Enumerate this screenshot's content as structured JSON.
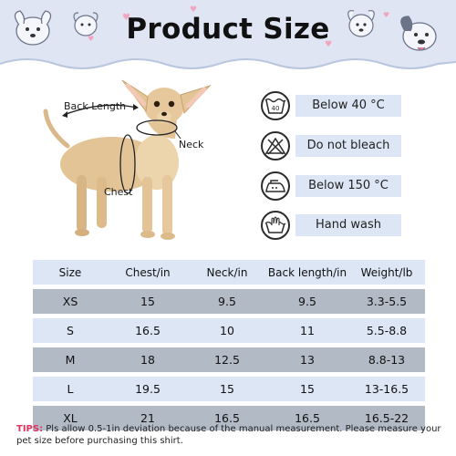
{
  "header": {
    "title": "Product Size",
    "background_color": "#dfe5f3"
  },
  "dog_labels": {
    "back_length": "Back Length",
    "neck": "Neck",
    "chest": "Chest"
  },
  "care": [
    {
      "icon": "wash-40-icon",
      "text": "Below 40 °C",
      "icon_text": "40"
    },
    {
      "icon": "no-bleach-icon",
      "text": "Do not bleach"
    },
    {
      "icon": "iron-icon",
      "text": "Below 150 °C"
    },
    {
      "icon": "hand-wash-icon",
      "text": "Hand wash"
    }
  ],
  "table": {
    "headers": [
      "Size",
      "Chest/in",
      "Neck/in",
      "Back length/in",
      "Weight/lb"
    ],
    "rows": [
      [
        "XS",
        "15",
        "9.5",
        "9.5",
        "3.3-5.5"
      ],
      [
        "S",
        "16.5",
        "10",
        "11",
        "5.5-8.8"
      ],
      [
        "M",
        "18",
        "12.5",
        "13",
        "8.8-13"
      ],
      [
        "L",
        "19.5",
        "15",
        "15",
        "13-16.5"
      ],
      [
        "XL",
        "21",
        "16.5",
        "16.5",
        "16.5-22"
      ]
    ],
    "light_row_color": "#dce6f5",
    "dark_row_color": "#b2bac6"
  },
  "tips": {
    "label": "TIPS:",
    "text": " Pls allow 0.5-1in deviation because of the manual measurement. Please measure your pet size before purchasing this shirt."
  },
  "accent_color": "#e0345f"
}
